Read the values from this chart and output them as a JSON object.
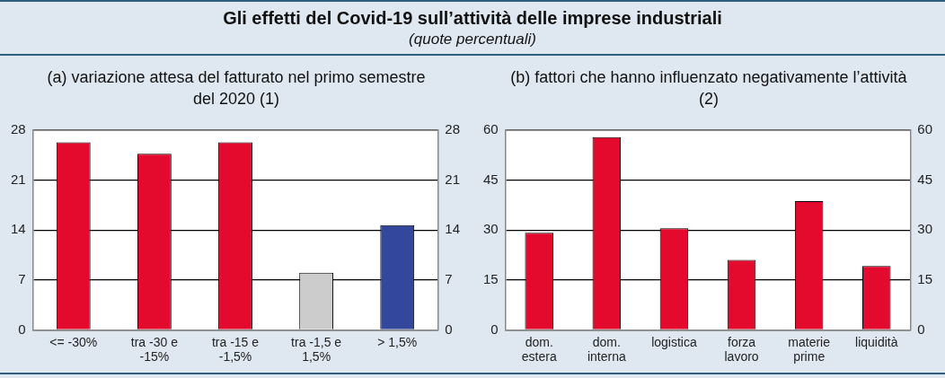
{
  "chart_data": [
    {
      "type": "other",
      "title": "Gli effetti del Covid-19 sull’attività delle imprese industriali",
      "subtitle": "(quote percentuali)"
    },
    {
      "type": "bar",
      "title": "(a) variazione attesa del fatturato nel primo semestre del 2020 (1)",
      "categories": [
        "<= -30%",
        "tra -30 e -15%",
        "tra -15 e -1,5%",
        "tra -1,5 e 1,5%",
        "> 1,5%"
      ],
      "values": [
        26.3,
        24.7,
        26.3,
        8.0,
        14.7
      ],
      "colors": [
        "#e30a2d",
        "#e30a2d",
        "#e30a2d",
        "#cccccc",
        "#33479c"
      ],
      "ylim": [
        0,
        28
      ],
      "yticks": [
        0,
        7,
        14,
        21,
        28
      ],
      "y2lim": [
        0,
        28
      ],
      "y2ticks": [
        0,
        7,
        14,
        21,
        28
      ],
      "grid": "y",
      "legend": false
    },
    {
      "type": "bar",
      "title": "(b) fattori che hanno influenzato negativamente l’attività (2)",
      "categories": [
        "dom. estera",
        "dom. interna",
        "logistica",
        "forza lavoro",
        "materie prime",
        "liquidità"
      ],
      "values": [
        29.2,
        57.9,
        30.5,
        21.0,
        38.7,
        19.2
      ],
      "color": "#e30a2d",
      "ylim": [
        0,
        60
      ],
      "yticks": [
        0,
        15,
        30,
        45,
        60
      ],
      "y2lim": [
        0,
        60
      ],
      "y2ticks": [
        0,
        15,
        30,
        45,
        60
      ],
      "grid": "y",
      "legend": false
    }
  ]
}
